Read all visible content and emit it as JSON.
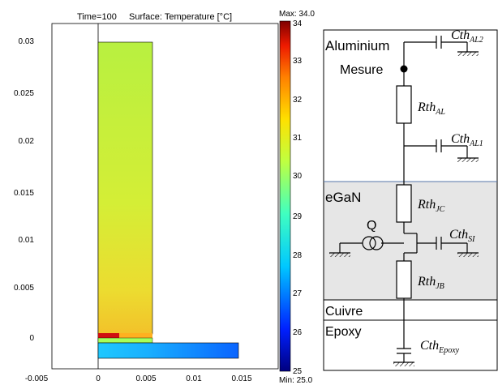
{
  "plot": {
    "time_label": "Time=100",
    "surface_label": "Surface: Temperature [°C]",
    "y_ticks": [
      "0.03",
      "0.025",
      "0.02",
      "0.015",
      "0.01",
      "0.005",
      "0"
    ],
    "x_ticks": [
      "-0.005",
      "0",
      "0.005",
      "0.01",
      "0.015"
    ]
  },
  "colorbar": {
    "max_label": "Max: 34.0",
    "min_label": "Min: 25.0",
    "ticks": [
      "34",
      "33",
      "32",
      "31",
      "30",
      "29",
      "28",
      "27",
      "26",
      "25"
    ],
    "min_value": 25.0,
    "max_value": 34.0
  },
  "circuit": {
    "section_aluminium": "Aluminium",
    "section_egan": "eGaN",
    "section_cuivre": "Cuivre",
    "section_epoxy": "Epoxy",
    "mesure_label": "Mesure",
    "q_label": "Q",
    "components": {
      "cth_al2": {
        "base": "Cth",
        "sub": "AL2"
      },
      "rth_al": {
        "base": "Rth",
        "sub": "AL"
      },
      "cth_al1": {
        "base": "Cth",
        "sub": "AL1"
      },
      "rth_jc": {
        "base": "Rth",
        "sub": "JC"
      },
      "cth_si": {
        "base": "Cth",
        "sub": "SI"
      },
      "rth_jb": {
        "base": "Rth",
        "sub": "JB"
      },
      "cth_epoxy": {
        "base": "Cth",
        "sub": "Epoxy"
      }
    },
    "egan_fill": "#e6e6e6"
  }
}
